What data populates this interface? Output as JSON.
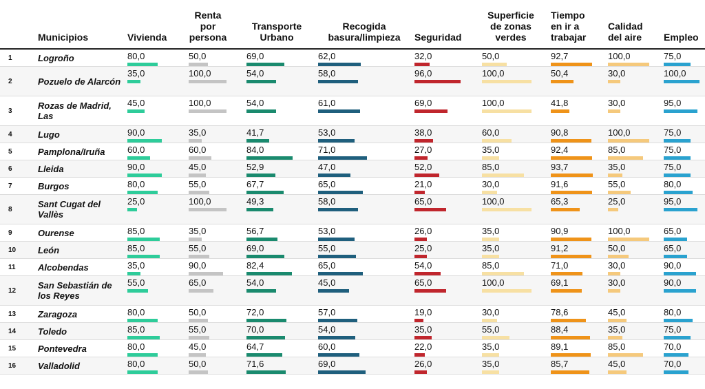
{
  "chart_data": {
    "type": "table",
    "headers": {
      "municipios": "Municipios",
      "columns": [
        {
          "key": "vivienda",
          "label": "Vivienda",
          "color": "#2ecc9a"
        },
        {
          "key": "renta",
          "label": "Renta por persona",
          "color": "#c4c4c4"
        },
        {
          "key": "transporte",
          "label": "Transporte Urbano",
          "color": "#1a8a6e"
        },
        {
          "key": "basura",
          "label": "Recogida basura/limpieza",
          "color": "#1f5f7d"
        },
        {
          "key": "seguridad",
          "label": "Seguridad",
          "color": "#c0262d"
        },
        {
          "key": "verdes",
          "label": "Superficie de zonas verdes",
          "color": "#f7e0a3"
        },
        {
          "key": "tiempo",
          "label": "Tiempo en ir a trabajar",
          "color": "#ef9319"
        },
        {
          "key": "aire",
          "label": "Calidad del aire",
          "color": "#f5c97c"
        },
        {
          "key": "empleo",
          "label": "Empleo",
          "color": "#2aa2cf"
        }
      ]
    },
    "rows": [
      {
        "rank": "1",
        "name": "Logroño",
        "values": [
          80.0,
          50.0,
          69.0,
          62.0,
          32.0,
          50.0,
          92.7,
          100.0,
          75.0
        ]
      },
      {
        "rank": "2",
        "name": "Pozuelo de Alarcón",
        "values": [
          35.0,
          100.0,
          54.0,
          58.0,
          96.0,
          100.0,
          50.4,
          30.0,
          100.0
        ]
      },
      {
        "rank": "3",
        "name": "Rozas de Madrid, Las",
        "values": [
          45.0,
          100.0,
          54.0,
          61.0,
          69.0,
          100.0,
          41.8,
          30.0,
          95.0
        ]
      },
      {
        "rank": "4",
        "name": "Lugo",
        "values": [
          90.0,
          35.0,
          41.7,
          53.0,
          38.0,
          60.0,
          90.8,
          100.0,
          75.0
        ]
      },
      {
        "rank": "5",
        "name": "Pamplona/Iruña",
        "values": [
          60.0,
          60.0,
          84.0,
          71.0,
          27.0,
          35.0,
          92.4,
          85.0,
          75.0
        ]
      },
      {
        "rank": "6",
        "name": "Lleida",
        "values": [
          90.0,
          45.0,
          52.9,
          47.0,
          52.0,
          85.0,
          93.7,
          35.0,
          75.0
        ]
      },
      {
        "rank": "7",
        "name": "Burgos",
        "values": [
          80.0,
          55.0,
          67.7,
          65.0,
          21.0,
          30.0,
          91.6,
          55.0,
          80.0
        ]
      },
      {
        "rank": "8",
        "name": "Sant Cugat del Vallès",
        "values": [
          25.0,
          100.0,
          49.3,
          58.0,
          65.0,
          100.0,
          65.3,
          25.0,
          95.0
        ]
      },
      {
        "rank": "9",
        "name": "Ourense",
        "values": [
          85.0,
          35.0,
          56.7,
          53.0,
          26.0,
          35.0,
          90.9,
          100.0,
          65.0
        ]
      },
      {
        "rank": "10",
        "name": "León",
        "values": [
          85.0,
          55.0,
          69.0,
          55.0,
          25.0,
          35.0,
          91.2,
          50.0,
          65.0
        ]
      },
      {
        "rank": "11",
        "name": "Alcobendas",
        "values": [
          35.0,
          90.0,
          82.4,
          65.0,
          54.0,
          85.0,
          71.0,
          30.0,
          90.0
        ]
      },
      {
        "rank": "12",
        "name": "San Sebastián de los Reyes",
        "values": [
          55.0,
          65.0,
          54.0,
          45.0,
          65.0,
          100.0,
          69.1,
          30.0,
          90.0
        ]
      },
      {
        "rank": "13",
        "name": "Zaragoza",
        "values": [
          80.0,
          50.0,
          72.0,
          57.0,
          19.0,
          30.0,
          78.6,
          45.0,
          80.0
        ]
      },
      {
        "rank": "14",
        "name": "Toledo",
        "values": [
          85.0,
          55.0,
          70.0,
          54.0,
          35.0,
          55.0,
          88.4,
          35.0,
          75.0
        ]
      },
      {
        "rank": "15",
        "name": "Pontevedra",
        "values": [
          80.0,
          45.0,
          64.7,
          60.0,
          22.0,
          35.0,
          89.1,
          85.0,
          70.0
        ]
      },
      {
        "rank": "16",
        "name": "Valladolid",
        "values": [
          80.0,
          50.0,
          71.6,
          69.0,
          26.0,
          35.0,
          85.7,
          45.0,
          70.0
        ]
      }
    ]
  }
}
